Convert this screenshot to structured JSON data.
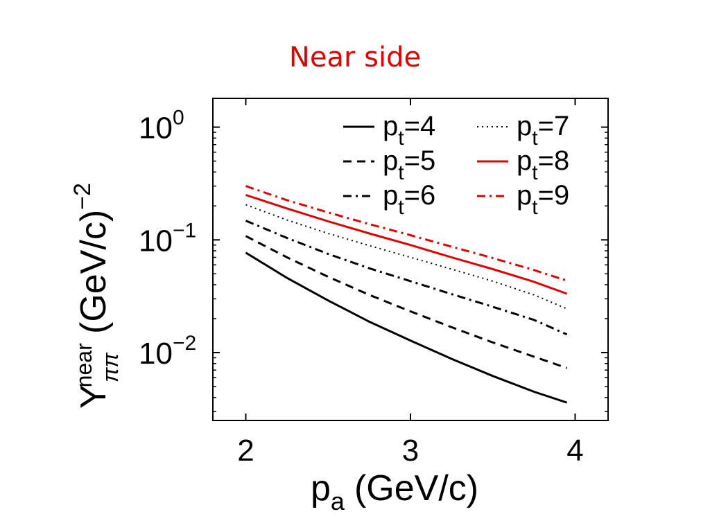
{
  "slide": {
    "title": "Near side"
  },
  "chart_data": {
    "type": "line",
    "xlabel": "p",
    "xlabel_sub": "a",
    "xlabel_unit": "(GeV/c)",
    "ylabel_main": "Y",
    "ylabel_sub": "ππ",
    "ylabel_sup": "near",
    "ylabel_unit": "(GeV/c)",
    "ylabel_unit_exp": "−2",
    "xlim": [
      1.8,
      4.2
    ],
    "ylim": [
      0.0025,
      1.8
    ],
    "yscale": "log",
    "xticks": [
      2,
      3,
      4
    ],
    "xtick_labels": [
      "2",
      "3",
      "4"
    ],
    "yticks": [
      {
        "value": 1,
        "base": "10",
        "exp": "0"
      },
      {
        "value": 0.1,
        "base": "10",
        "exp": "−1"
      },
      {
        "value": 0.01,
        "base": "10",
        "exp": "−2"
      }
    ],
    "grid": false,
    "legend_position": "top-right",
    "x": [
      2.0,
      2.25,
      2.5,
      2.75,
      3.0,
      3.25,
      3.5,
      3.75,
      3.95
    ],
    "series": [
      {
        "name": "p",
        "sub": "t",
        "eq": "=4",
        "color": "#000000",
        "style": "solid",
        "values": [
          0.077,
          0.046,
          0.029,
          0.0188,
          0.0128,
          0.0088,
          0.0062,
          0.0045,
          0.0036
        ]
      },
      {
        "name": "p",
        "sub": "t",
        "eq": "=5",
        "color": "#000000",
        "style": "dashed",
        "values": [
          0.108,
          0.07,
          0.047,
          0.0325,
          0.0232,
          0.0168,
          0.0123,
          0.0092,
          0.0073
        ]
      },
      {
        "name": "p",
        "sub": "t",
        "eq": "=6",
        "color": "#000000",
        "style": "dashdot",
        "values": [
          0.148,
          0.104,
          0.075,
          0.056,
          0.043,
          0.033,
          0.0255,
          0.0195,
          0.0145
        ]
      },
      {
        "name": "p",
        "sub": "t",
        "eq": "=7",
        "color": "#000000",
        "style": "dotted",
        "values": [
          0.205,
          0.15,
          0.114,
          0.089,
          0.07,
          0.055,
          0.043,
          0.0325,
          0.0245
        ]
      },
      {
        "name": "p",
        "sub": "t",
        "eq": "=8",
        "color": "#e00000",
        "style": "solid",
        "values": [
          0.25,
          0.19,
          0.146,
          0.114,
          0.09,
          0.07,
          0.055,
          0.0425,
          0.0333
        ]
      },
      {
        "name": "p",
        "sub": "t",
        "eq": "=9",
        "color": "#e00000",
        "style": "dashdot",
        "values": [
          0.3,
          0.225,
          0.175,
          0.138,
          0.11,
          0.087,
          0.069,
          0.054,
          0.0435
        ]
      }
    ]
  }
}
